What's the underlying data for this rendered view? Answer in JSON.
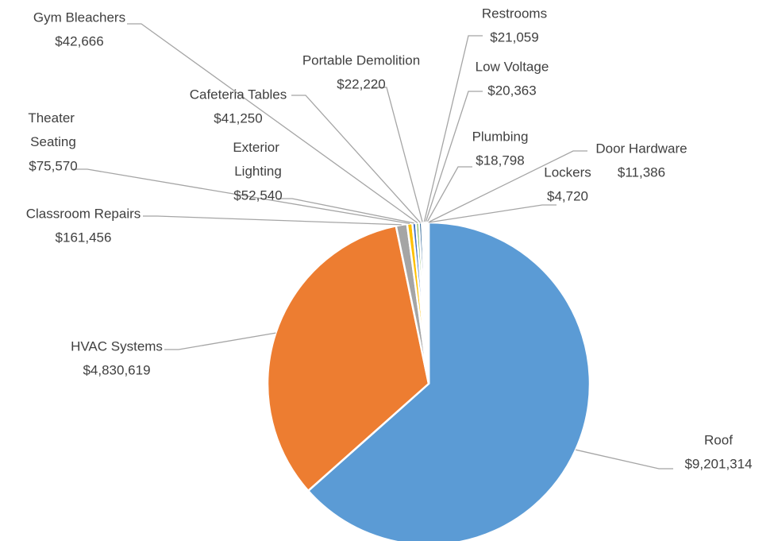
{
  "chart_data": {
    "type": "pie",
    "categories": [
      "Roof",
      "HVAC Systems",
      "Classroom Repairs",
      "Theater Seating",
      "Exterior Lighting",
      "Gym Bleachers",
      "Cafeteria Tables",
      "Portable Demolition",
      "Restrooms",
      "Low Voltage",
      "Plumbing",
      "Door Hardware",
      "Lockers"
    ],
    "values": [
      9201314,
      4830619,
      161456,
      75570,
      52540,
      42666,
      41250,
      22220,
      21059,
      20363,
      18798,
      11386,
      4720
    ],
    "value_labels": [
      "$9,201,314",
      "$4,830,619",
      "$161,456",
      "$75,570",
      "$52,540",
      "$42,666",
      "$41,250",
      "$22,220",
      "$21,059",
      "$20,363",
      "$18,798",
      "$11,386",
      "$4,720"
    ],
    "colors": [
      "#5B9BD5",
      "#ED7D31",
      "#A5A5A5",
      "#FFC000",
      "#4472C4",
      "#70AD47",
      "#255E91",
      "#9E480E",
      "#636363",
      "#997300",
      "#264478",
      "#43682B",
      "#698ED0"
    ]
  }
}
